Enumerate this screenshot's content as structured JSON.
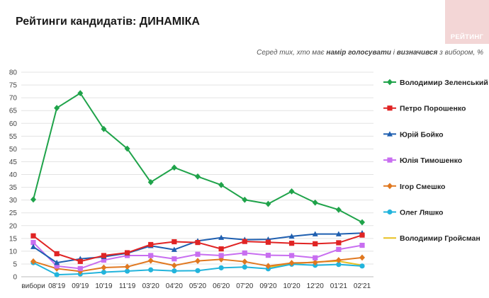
{
  "header": {
    "title": "Рейтинги кандидатів: ДИНАМІКА",
    "logo_text": "РЕЙТИНГ",
    "subtitle_pre": "Серед тих, хто має ",
    "subtitle_bold1": "намір голосувати",
    "subtitle_mid": " і ",
    "subtitle_bold2": "визначився",
    "subtitle_post": " з вибором, %"
  },
  "chart_data": {
    "type": "line",
    "categories": [
      "вибори",
      "08'19",
      "09'19",
      "10'19",
      "11'19",
      "03'20",
      "04'20",
      "05'20",
      "06'20",
      "07'20",
      "09'20",
      "10'20",
      "12'20",
      "01'21",
      "02'21"
    ],
    "ylim": [
      0,
      80
    ],
    "yticks": [
      0,
      5,
      10,
      15,
      20,
      25,
      30,
      35,
      40,
      45,
      50,
      55,
      60,
      65,
      70,
      75,
      80
    ],
    "grid": "horizontal",
    "legend_position": "right",
    "series": [
      {
        "name": "Володимир Зеленський",
        "color": "#1fa34a",
        "marker": "diamond",
        "values": [
          30.2,
          66,
          71.8,
          57.8,
          50.1,
          37,
          42.7,
          39.2,
          35.9,
          30.1,
          28.5,
          33.4,
          29,
          26.2,
          21.3
        ]
      },
      {
        "name": "Петро Порошенко",
        "color": "#e02424",
        "marker": "square",
        "values": [
          16,
          9,
          6,
          8.3,
          9.4,
          12.6,
          13.7,
          13.4,
          10.9,
          13.8,
          13.5,
          13.1,
          12.9,
          13.3,
          16.3
        ]
      },
      {
        "name": "Юрій Бойко",
        "color": "#1f5fb0",
        "marker": "triangle",
        "values": [
          11.7,
          5.5,
          7,
          7.8,
          9.2,
          12.1,
          10.6,
          14,
          15.3,
          14.5,
          14.6,
          15.8,
          16.7,
          16.7,
          17.1
        ]
      },
      {
        "name": "Юлія Тимошенко",
        "color": "#c86ef0",
        "marker": "square",
        "values": [
          13.4,
          4.2,
          3.2,
          6.5,
          8.3,
          8.3,
          7,
          8.8,
          8.3,
          9.3,
          8.4,
          8.3,
          7.4,
          10.7,
          12.3
        ]
      },
      {
        "name": "Ігор Смешко",
        "color": "#e07820",
        "marker": "diamond",
        "values": [
          6,
          3.2,
          2.1,
          3.6,
          3.9,
          6.3,
          4.4,
          6.2,
          6.8,
          5.9,
          4.2,
          5.4,
          5.6,
          6.5,
          7.5
        ]
      },
      {
        "name": "Олег Ляшко",
        "color": "#22b4dc",
        "marker": "circle",
        "values": [
          5.5,
          0.8,
          1.1,
          1.8,
          2.2,
          2.7,
          2.3,
          2.4,
          3.5,
          3.8,
          3.1,
          4.9,
          4.5,
          4.8,
          4.2
        ]
      },
      {
        "name": "Володимир Гройсман",
        "color": "#e8c020",
        "marker": "none",
        "values": [
          null,
          null,
          null,
          null,
          null,
          null,
          null,
          null,
          null,
          null,
          3.8,
          5,
          5.8,
          6.1,
          4.5
        ]
      }
    ]
  }
}
